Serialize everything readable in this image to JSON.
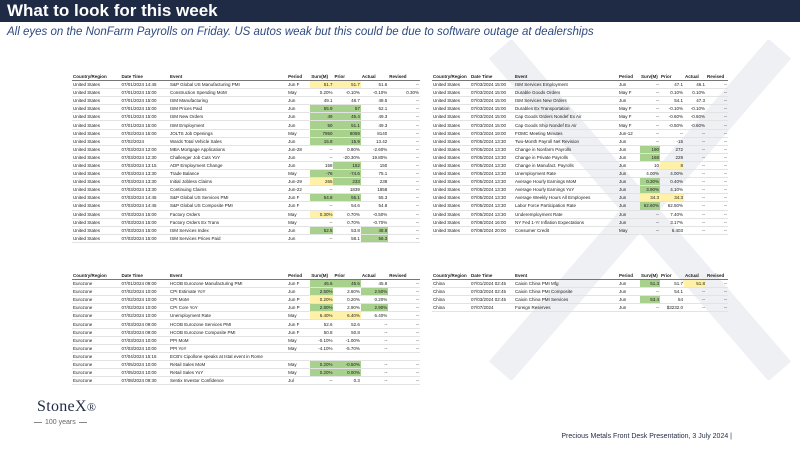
{
  "title": "What to look for this week",
  "subtitle": "All eyes on the NonFarm Payrolls on Friday. US autos weak but this could be due to software outage at dealerships",
  "colors": {
    "header": "#1f2a44",
    "highlight_green": "#a9d18e",
    "highlight_yellow": "#fff2a8",
    "highlight_pink": "#f6c9c9"
  },
  "tables": [
    {
      "headers": [
        "Country/Region",
        "Date Time",
        "Event",
        "Period",
        "Surv(M)",
        "Prior",
        "Actual",
        "Revised"
      ],
      "rows": [
        [
          "United States",
          "07/01/2024 14:45",
          "S&P Global US Manufacturing PMI",
          "Jun F",
          "51.7",
          "51.7",
          "51.6",
          "--"
        ],
        [
          "United States",
          "07/01/2024 15:00",
          "Construction Spending MoM",
          "May",
          "0.20%",
          "-0.10%",
          "-0.10%",
          "0.30%"
        ],
        [
          "United States",
          "07/01/2024 15:00",
          "ISM Manufacturing",
          "Jun",
          "49.1",
          "48.7",
          "48.5",
          "--"
        ],
        [
          "United States",
          "07/01/2024 15:00",
          "ISM Prices Paid",
          "Jun",
          "55.9",
          "57",
          "52.1",
          "--"
        ],
        [
          "United States",
          "07/01/2024 15:00",
          "ISM New Orders",
          "Jun",
          "49",
          "45.4",
          "49.3",
          "--"
        ],
        [
          "United States",
          "07/01/2024 15:00",
          "ISM Employment",
          "Jun",
          "50",
          "51.1",
          "49.3",
          "--"
        ],
        [
          "United States",
          "07/02/2024 15:00",
          "JOLTS Job Openings",
          "May",
          "7950",
          "8059",
          "8140",
          "--"
        ],
        [
          "United States",
          "07/02/2024",
          "Wards Total Vehicle Sales",
          "Jun",
          "15.8",
          "15.9",
          "13.42",
          "--"
        ],
        [
          "United States",
          "07/03/2024 12:00",
          "MBA Mortgage Applications",
          "Jun-28",
          "--",
          "0.80%",
          "-2.60%",
          "--"
        ],
        [
          "United States",
          "07/03/2024 12:30",
          "Challenger Job Cuts YoY",
          "Jun",
          "--",
          "-20.30%",
          "19.80%",
          "--"
        ],
        [
          "United States",
          "07/03/2024 13:15",
          "ADP Employment Change",
          "Jun",
          "158",
          "152",
          "150",
          "--"
        ],
        [
          "United States",
          "07/03/2024 13:30",
          "Trade Balance",
          "May",
          "-76",
          "-74.6",
          "75.1",
          "--"
        ],
        [
          "United States",
          "07/03/2024 13:30",
          "Initial Jobless Claims",
          "Jun-29",
          "265",
          "233",
          "238",
          "--"
        ],
        [
          "United States",
          "07/03/2024 13:30",
          "Continuing Claims",
          "Jun-22",
          "--",
          "1839",
          "1858",
          "--"
        ],
        [
          "United States",
          "07/03/2024 14:45",
          "S&P Global US Services PMI",
          "Jun F",
          "54.8",
          "55.1",
          "55.3",
          "--"
        ],
        [
          "United States",
          "07/03/2024 14:45",
          "S&P Global US Composite PMI",
          "Jun F",
          "--",
          "54.6",
          "54.8",
          "--"
        ],
        [
          "United States",
          "07/03/2024 15:00",
          "Factory Orders",
          "May",
          "0.30%",
          "0.70%",
          "-0.50%",
          "--"
        ],
        [
          "United States",
          "07/03/2024 15:00",
          "Factory Orders Ex Trans",
          "May",
          "--",
          "0.70%",
          "-0.70%",
          "--"
        ],
        [
          "United States",
          "07/03/2024 15:00",
          "ISM Services Index",
          "Jun",
          "52.5",
          "53.8",
          "48.8",
          "--"
        ],
        [
          "United States",
          "07/03/2024 15:00",
          "ISM Services Prices Paid",
          "Jun",
          "--",
          "58.1",
          "56.3",
          "--"
        ]
      ]
    },
    {
      "headers": [
        "Country/Region",
        "Date Time",
        "Event",
        "Period",
        "Surv(M)",
        "Prior",
        "Actual",
        "Revised"
      ],
      "rows": [
        [
          "United States",
          "07/03/2024 15:00",
          "ISM Services Employment",
          "Jun",
          "--",
          "47.1",
          "46.1",
          "--"
        ],
        [
          "United States",
          "07/03/2024 15:00",
          "Durable Goods Orders",
          "May F",
          "--",
          "0.10%",
          "0.10%",
          "--"
        ],
        [
          "United States",
          "07/03/2024 15:00",
          "ISM Services New Orders",
          "Jun",
          "--",
          "54.1",
          "47.3",
          "--"
        ],
        [
          "United States",
          "07/03/2024 15:00",
          "Durables Ex Transportation",
          "May F",
          "--",
          "-0.10%",
          "-0.10%",
          "--"
        ],
        [
          "United States",
          "07/03/2024 15:00",
          "Cap Goods Orders Nondef Ex Air",
          "May F",
          "--",
          "-0.60%",
          "-0.60%",
          "--"
        ],
        [
          "United States",
          "07/03/2024 15:00",
          "Cap Goods Ship Nondef Ex Air",
          "May F",
          "--",
          "-0.50%",
          "-0.60%",
          "--"
        ],
        [
          "United States",
          "07/03/2024 19:00",
          "FOMC Meeting Minutes",
          "Jun-12",
          "--",
          "--",
          "--",
          "--"
        ],
        [
          "United States",
          "07/05/2024 13:30",
          "Two-Month Payroll Net Revision",
          "Jun",
          "--",
          "-15",
          "--",
          "--"
        ],
        [
          "United States",
          "07/05/2024 13:30",
          "Change in Nonfarm Payrolls",
          "Jun",
          "190",
          "272",
          "--",
          "--"
        ],
        [
          "United States",
          "07/05/2024 13:30",
          "Change in Private Payrolls",
          "Jun",
          "168",
          "229",
          "--",
          "--"
        ],
        [
          "United States",
          "07/05/2024 13:30",
          "Change in Manufact. Payrolls",
          "Jun",
          "10",
          "8",
          "--",
          "--"
        ],
        [
          "United States",
          "07/05/2024 13:30",
          "Unemployment Rate",
          "Jun",
          "4.00%",
          "4.00%",
          "--",
          "--"
        ],
        [
          "United States",
          "07/05/2024 13:30",
          "Average Hourly Earnings MoM",
          "Jun",
          "0.30%",
          "0.40%",
          "--",
          "--"
        ],
        [
          "United States",
          "07/05/2024 13:30",
          "Average Hourly Earnings YoY",
          "Jun",
          "3.90%",
          "4.10%",
          "--",
          "--"
        ],
        [
          "United States",
          "07/05/2024 13:30",
          "Average Weekly Hours All Employees",
          "Jun",
          "34.3",
          "34.3",
          "--",
          "--"
        ],
        [
          "United States",
          "07/05/2024 13:30",
          "Labor Force Participation Rate",
          "Jun",
          "62.60%",
          "62.50%",
          "--",
          "--"
        ],
        [
          "United States",
          "07/05/2024 13:30",
          "Underemployment Rate",
          "Jun",
          "--",
          "7.40%",
          "--",
          "--"
        ],
        [
          "United States",
          "07/08/2024 16:00",
          "NY Fed 1-Yr Inflation Expectations",
          "Jun",
          "--",
          "3.17%",
          "--",
          "--"
        ],
        [
          "United States",
          "07/08/2024 20:00",
          "Consumer Credit",
          "May",
          "--",
          "6.403",
          "--",
          "--"
        ]
      ]
    },
    {
      "headers": [
        "Country/Region",
        "Date Time",
        "Event",
        "Period",
        "Surv(M)",
        "Prior",
        "Actual",
        "Revised"
      ],
      "rows": [
        [
          "Eurozone",
          "07/01/2024 09:00",
          "HCOB Eurozone Manufacturing PMI",
          "Jun F",
          "45.6",
          "45.6",
          "45.8",
          "--"
        ],
        [
          "Eurozone",
          "07/02/2024 10:00",
          "CPI Estimate YoY",
          "Jun",
          "2.50%",
          "2.60%",
          "2.50%",
          "--"
        ],
        [
          "Eurozone",
          "07/02/2024 10:00",
          "CPI MoM",
          "Jun P",
          "0.20%",
          "0.20%",
          "0.20%",
          "--"
        ],
        [
          "Eurozone",
          "07/02/2024 10:00",
          "CPI Core YoY",
          "Jun P",
          "2.80%",
          "2.90%",
          "2.90%",
          "--"
        ],
        [
          "Eurozone",
          "07/02/2024 10:00",
          "Unemployment Rate",
          "May",
          "6.40%",
          "6.40%",
          "6.40%",
          "--"
        ],
        [
          "Eurozone",
          "07/03/2024 09:00",
          "HCOB Eurozone Services PMI",
          "Jun F",
          "52.6",
          "52.6",
          "--",
          "--"
        ],
        [
          "Eurozone",
          "07/03/2024 09:00",
          "HCOB Eurozone Composite PMI",
          "Jun F",
          "50.8",
          "50.8",
          "--",
          "--"
        ],
        [
          "Eurozone",
          "07/03/2024 10:00",
          "PPI MoM",
          "May",
          "-0.10%",
          "-1.00%",
          "--",
          "--"
        ],
        [
          "Eurozone",
          "07/03/2024 10:00",
          "PPI YoY",
          "May",
          "-4.10%",
          "-5.70%",
          "--",
          "--"
        ],
        [
          "Eurozone",
          "07/04/2024 15:15",
          "ECB's Cipollone speaks at Istat event in Rome",
          "",
          "",
          "",
          "",
          ""
        ],
        [
          "Eurozone",
          "07/05/2024 10:00",
          "Retail Sales MoM",
          "May",
          "0.20%",
          "-0.50%",
          "--",
          "--"
        ],
        [
          "Eurozone",
          "07/05/2024 10:00",
          "Retail Sales YoY",
          "May",
          "0.20%",
          "0.00%",
          "--",
          "--"
        ],
        [
          "Eurozone",
          "07/08/2024 09:30",
          "Sentix Investor Confidence",
          "Jul",
          "--",
          "0.3",
          "--",
          "--"
        ]
      ]
    },
    {
      "headers": [
        "Country/Region",
        "Date Time",
        "Event",
        "Period",
        "Surv(M)",
        "Prior",
        "Actual",
        "Revised"
      ],
      "rows": [
        [
          "China",
          "07/01/2024 02:45",
          "Caixin China PMI Mfg",
          "Jun",
          "51.3",
          "51.7",
          "51.8",
          "--"
        ],
        [
          "China",
          "07/03/2024 02:45",
          "Caixin China PMI Composite",
          "Jun",
          "--",
          "54.1",
          "--",
          "--"
        ],
        [
          "China",
          "07/03/2024 02:45",
          "Caixin China PMI Services",
          "Jun",
          "53.4",
          "54",
          "--",
          "--"
        ],
        [
          "China",
          "07/07/2024",
          "Foreign Reserves",
          "Jun",
          "--",
          "$3232.0",
          "--",
          "--"
        ]
      ]
    }
  ],
  "logo": {
    "name": "StoneX",
    "mark": "®",
    "years": "100 years"
  },
  "footer": "Precious Metals Front Desk Presentation, 3 July 2024 |"
}
